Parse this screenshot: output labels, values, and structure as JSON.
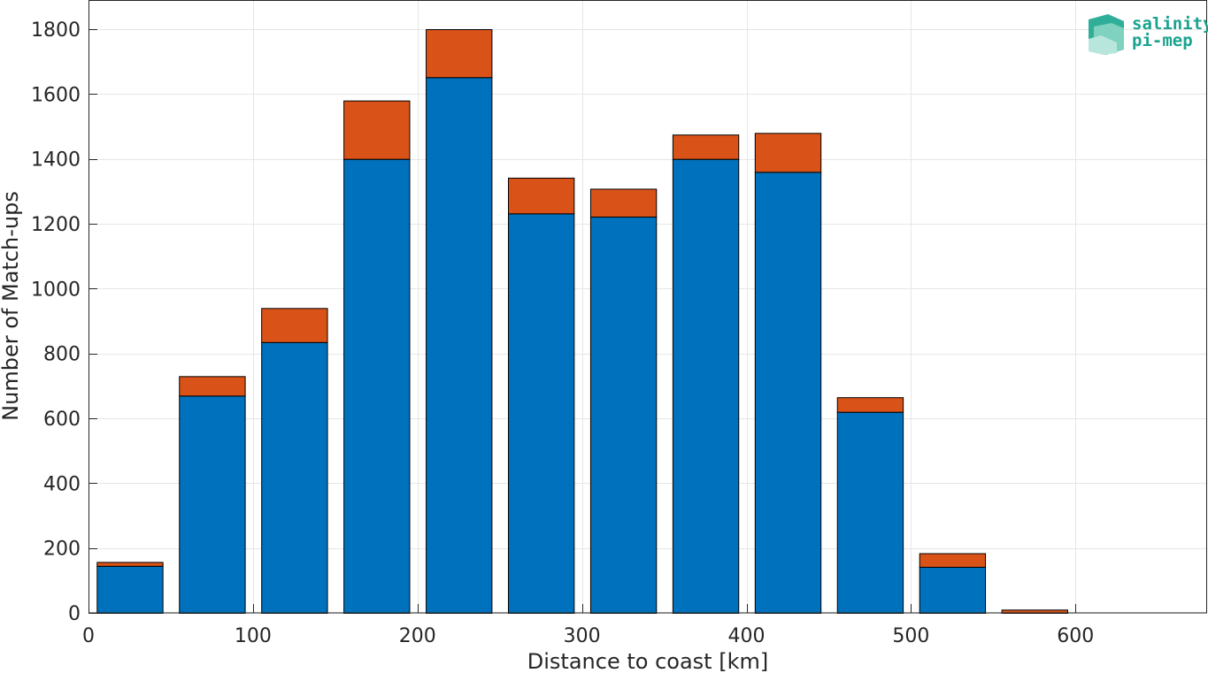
{
  "chart_data": {
    "type": "bar",
    "stacked": true,
    "xlabel": "Distance to coast [km]",
    "ylabel": "Number of Match-ups",
    "xlim": [
      0,
      680
    ],
    "ylim": [
      0,
      1800
    ],
    "xticks": [
      0,
      100,
      200,
      300,
      400,
      500,
      600
    ],
    "yticks": [
      0,
      200,
      400,
      600,
      800,
      1000,
      1200,
      1400,
      1600,
      1800
    ],
    "grid": true,
    "bar_width": 40,
    "x": [
      25,
      75,
      125,
      175,
      225,
      275,
      325,
      375,
      425,
      475,
      525,
      575
    ],
    "series": [
      {
        "color": "#0072bd",
        "values": [
          145,
          670,
          835,
          1400,
          1652,
          1232,
          1222,
          1400,
          1360,
          620,
          142,
          0
        ]
      },
      {
        "color": "#d95319",
        "values": [
          12,
          60,
          105,
          180,
          148,
          110,
          86,
          75,
          120,
          45,
          42,
          10
        ]
      }
    ]
  },
  "logo": {
    "line1": "salinity",
    "line2": "pi-mep",
    "color": "#1aa38f"
  }
}
